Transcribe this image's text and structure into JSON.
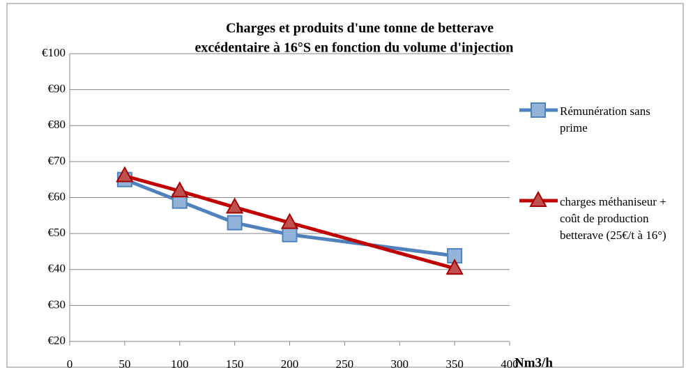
{
  "chart_data": {
    "type": "line",
    "title": [
      "Charges et produits d'une tonne de betterave",
      "excédentaire  à 16°S en fonction du volume d'injection"
    ],
    "x_label": "Nm3/h",
    "x": [
      50,
      100,
      150,
      200,
      350
    ],
    "series": [
      {
        "name": "Rémunération sans prime",
        "color": "#4f81bd",
        "marker": "square",
        "values": [
          65,
          59,
          53,
          49.7,
          43.8
        ]
      },
      {
        "name": "charges méthaniseur + coût de production betterave (25€/t à 16°)",
        "color": "#c00000",
        "marker": "triangle",
        "values": [
          66,
          61.8,
          57.3,
          53,
          40.3
        ]
      }
    ],
    "xlim": [
      0,
      400
    ],
    "xticks": [
      0,
      50,
      100,
      150,
      200,
      250,
      300,
      350,
      400
    ],
    "ylim": [
      20,
      100
    ],
    "yticks": [
      {
        "value": 20,
        "label": "€20"
      },
      {
        "value": 30,
        "label": "€30"
      },
      {
        "value": 40,
        "label": "€40"
      },
      {
        "value": 50,
        "label": "€50"
      },
      {
        "value": 60,
        "label": "€60"
      },
      {
        "value": 70,
        "label": "€70"
      },
      {
        "value": 80,
        "label": "€80"
      },
      {
        "value": 90,
        "label": "€90"
      },
      {
        "value": 100,
        "label": "€100"
      }
    ],
    "grid": true,
    "legend": "right"
  }
}
